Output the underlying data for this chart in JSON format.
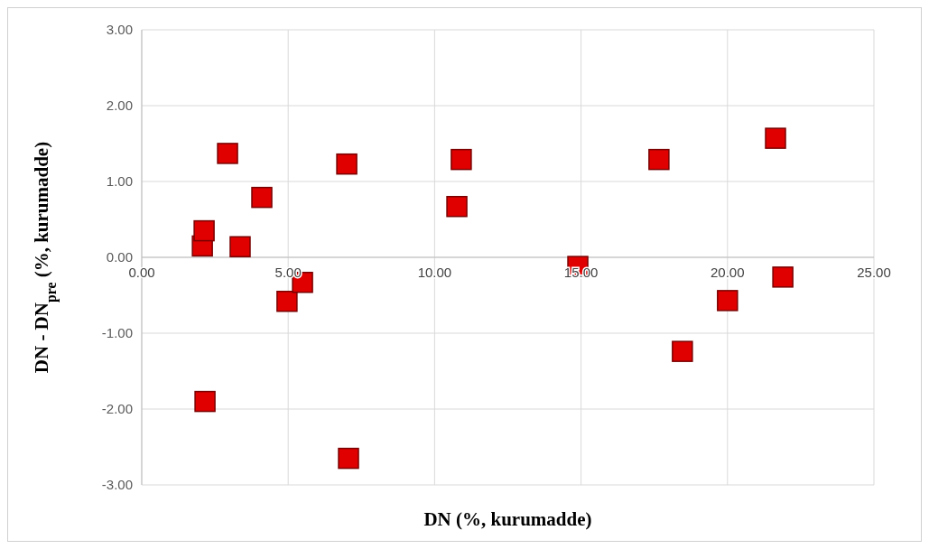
{
  "chart_data": {
    "type": "scatter",
    "xlabel": "DN (%, kurumadde)",
    "ylabel": "DN - DN$_{pre}$ (%, kurumadde)",
    "series": [
      {
        "color": "#e00000",
        "x": [
          2.07,
          2.13,
          2.93,
          3.36,
          4.1,
          4.96,
          5.49,
          7.0,
          2.16,
          7.06,
          10.91,
          10.76,
          14.89,
          17.66,
          18.46,
          20.0,
          21.64,
          21.89
        ],
        "values": [
          0.15,
          0.35,
          1.37,
          0.14,
          0.79,
          -0.58,
          -0.33,
          1.23,
          -1.9,
          -2.65,
          1.29,
          0.67,
          -0.12,
          1.29,
          -1.24,
          -0.57,
          1.57,
          -0.26
        ]
      }
    ],
    "xlim": [
      0,
      25
    ],
    "xticks": [
      {
        "value": 0,
        "label": "0.00"
      },
      {
        "value": 5,
        "label": "5.00"
      },
      {
        "value": 10,
        "label": "10.00"
      },
      {
        "value": 15,
        "label": "15.00"
      },
      {
        "value": 20,
        "label": "20.00"
      },
      {
        "value": 25,
        "label": "25.00"
      }
    ],
    "ylim": [
      -3,
      3
    ],
    "yticks": [
      {
        "value": -3,
        "label": "-3.00"
      },
      {
        "value": -2,
        "label": "-2.00"
      },
      {
        "value": -1,
        "label": "-1.00"
      },
      {
        "value": 0,
        "label": "0.00"
      },
      {
        "value": 1,
        "label": "1.00"
      },
      {
        "value": 2,
        "label": "2.00"
      },
      {
        "value": 3,
        "label": "3.00"
      }
    ],
    "grid": true,
    "marker": "square"
  }
}
